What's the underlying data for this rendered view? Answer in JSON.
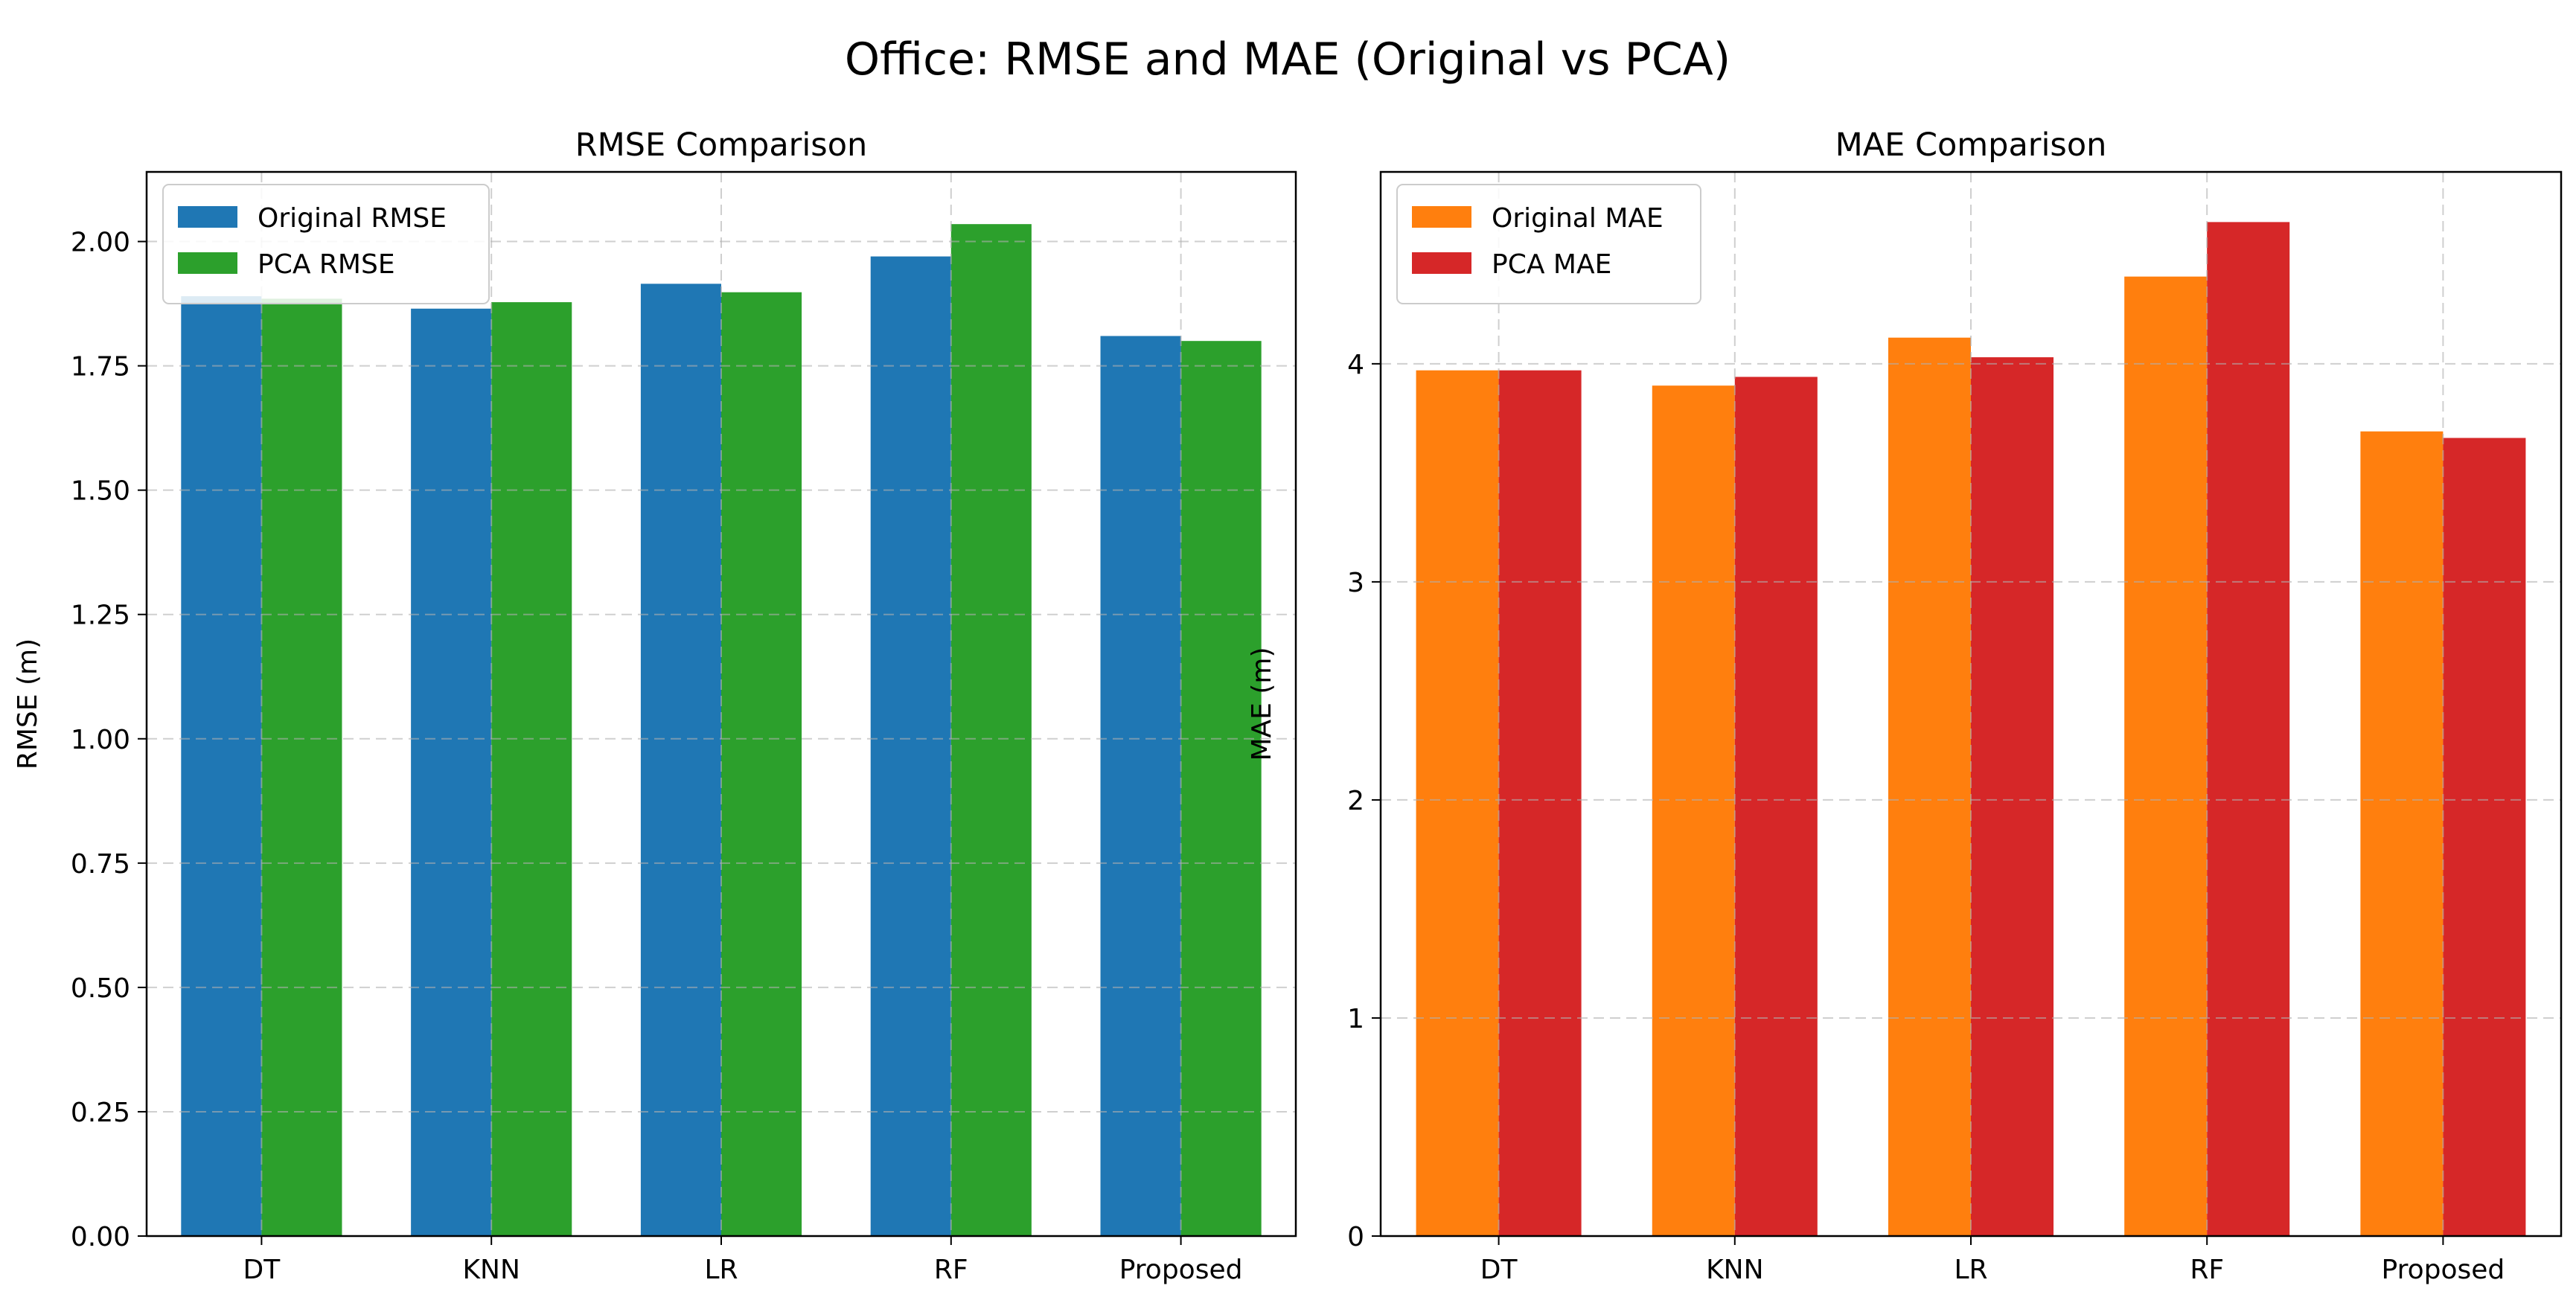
{
  "figure": {
    "suptitle": "Office: RMSE and MAE (Original vs PCA)"
  },
  "chart_data": [
    {
      "type": "bar",
      "title": "RMSE Comparison",
      "xlabel": "",
      "ylabel": "RMSE (m)",
      "categories": [
        "DT",
        "KNN",
        "LR",
        "RF",
        "Proposed"
      ],
      "series": [
        {
          "name": "Original RMSE",
          "color": "#1f77b4",
          "values": [
            1.89,
            1.865,
            1.915,
            1.97,
            1.81
          ]
        },
        {
          "name": "PCA RMSE",
          "color": "#2ca02c",
          "values": [
            1.885,
            1.878,
            1.898,
            2.035,
            1.8
          ]
        }
      ],
      "ylim": [
        0,
        2.14
      ],
      "yticks": [
        0.0,
        0.25,
        0.5,
        0.75,
        1.0,
        1.25,
        1.5,
        1.75,
        2.0
      ],
      "ytick_labels": [
        "0.00",
        "0.25",
        "0.50",
        "0.75",
        "1.00",
        "1.25",
        "1.50",
        "1.75",
        "2.00"
      ],
      "grid": true,
      "legend_position": "top-left"
    },
    {
      "type": "bar",
      "title": "MAE Comparison",
      "xlabel": "",
      "ylabel": "MAE (m)",
      "categories": [
        "DT",
        "KNN",
        "LR",
        "RF",
        "Proposed"
      ],
      "series": [
        {
          "name": "Original MAE",
          "color": "#ff7f0e",
          "values": [
            3.97,
            3.9,
            4.12,
            4.4,
            3.69
          ]
        },
        {
          "name": "PCA MAE",
          "color": "#d62728",
          "values": [
            3.97,
            3.94,
            4.03,
            4.65,
            3.66
          ]
        }
      ],
      "ylim": [
        0,
        4.88
      ],
      "yticks": [
        0,
        1,
        2,
        3,
        4
      ],
      "ytick_labels": [
        "0",
        "1",
        "2",
        "3",
        "4"
      ],
      "grid": true,
      "legend_position": "top-left"
    }
  ]
}
